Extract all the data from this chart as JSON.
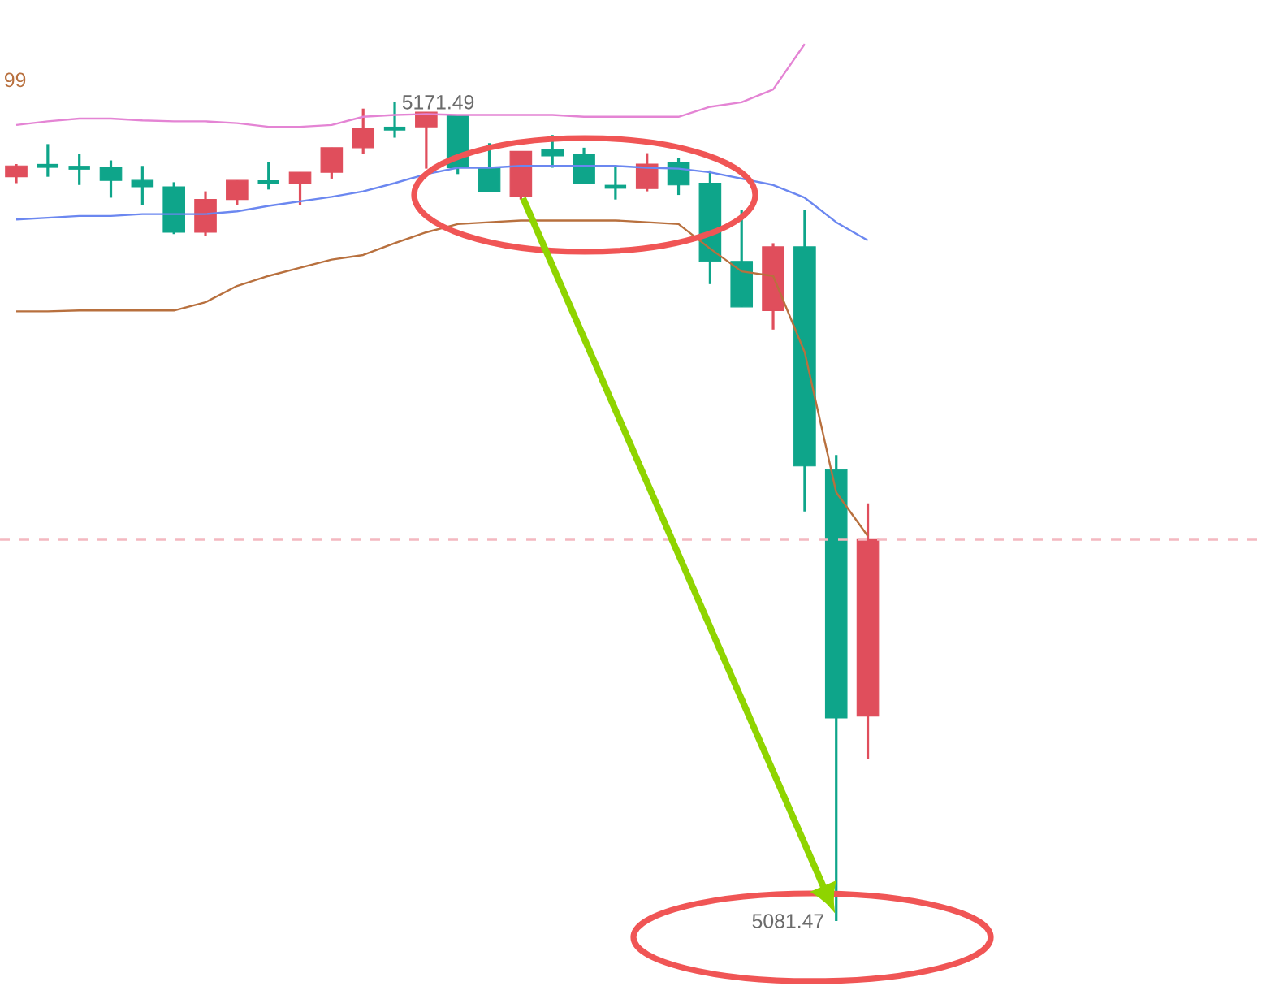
{
  "chart_data": {
    "type": "candlestick",
    "categories": [
      null,
      null,
      null,
      null,
      null,
      null,
      null,
      null,
      null,
      null,
      null,
      null,
      null,
      null,
      null,
      null,
      null,
      null,
      null,
      null,
      null,
      null,
      null,
      null,
      null,
      null,
      null,
      null
    ],
    "ohlc": [
      [
        5163.3,
        5164.7,
        5162.6,
        5164.5
      ],
      [
        5164.5,
        5166.9,
        5163.3,
        5164.5
      ],
      [
        5164.3,
        5165.8,
        5162.4,
        5164.3
      ],
      [
        5164.3,
        5165.1,
        5161.0,
        5162.9
      ],
      [
        5162.9,
        5164.5,
        5160.2,
        5162.2
      ],
      [
        5162.2,
        5162.7,
        5157.0,
        5157.2
      ],
      [
        5157.2,
        5161.7,
        5156.8,
        5160.8
      ],
      [
        5160.8,
        5162.9,
        5160.2,
        5162.9
      ],
      [
        5162.7,
        5164.9,
        5161.9,
        5162.7
      ],
      [
        5162.6,
        5163.8,
        5160.2,
        5163.8
      ],
      [
        5163.8,
        5166.5,
        5163.1,
        5166.5
      ],
      [
        5166.5,
        5170.8,
        5165.8,
        5168.6
      ],
      [
        5168.6,
        5171.49,
        5167.6,
        5168.6
      ],
      [
        5168.8,
        5170.4,
        5164.2,
        5170.4
      ],
      [
        5170.1,
        5170.1,
        5163.6,
        5164.3
      ],
      [
        5164.3,
        5167.0,
        5161.7,
        5161.7
      ],
      [
        5161.1,
        5166.1,
        5160.8,
        5166.1
      ],
      [
        5166.3,
        5167.9,
        5164.3,
        5165.6
      ],
      [
        5165.8,
        5166.5,
        5162.6,
        5162.6
      ],
      [
        5162.2,
        5164.5,
        5160.8,
        5162.2
      ],
      [
        5162.0,
        5165.9,
        5161.7,
        5164.7
      ],
      [
        5164.9,
        5165.4,
        5161.3,
        5162.4
      ],
      [
        5162.6,
        5164.0,
        5151.5,
        5154.0
      ],
      [
        5154.0,
        5159.7,
        5149.0,
        5149.0
      ],
      [
        5148.6,
        5156.0,
        5146.5,
        5155.6
      ],
      [
        5155.6,
        5159.7,
        5126.5,
        5131.5
      ],
      [
        5131.1,
        5132.7,
        5081.47,
        5103.8
      ],
      [
        5104.0,
        5127.4,
        5099.3,
        5123.4
      ]
    ],
    "colors": [
      "#e04e5c",
      "#0ea58a",
      "#0ea58a",
      "#0ea58a",
      "#0ea58a",
      "#0ea58a",
      "#e04e5c",
      "#e04e5c",
      "#0ea58a",
      "#e04e5c",
      "#e04e5c",
      "#e04e5c",
      "#0ea58a",
      "#e04e5c",
      "#0ea58a",
      "#0ea58a",
      "#e04e5c",
      "#0ea58a",
      "#0ea58a",
      "#0ea58a",
      "#e04e5c",
      "#0ea58a",
      "#0ea58a",
      "#0ea58a",
      "#e04e5c",
      "#0ea58a",
      "#0ea58a",
      "#e04e5c"
    ],
    "series": [
      {
        "type": "line",
        "color": "#e484d4",
        "values": [
          5169.0,
          5169.4,
          5169.7,
          5169.7,
          5169.5,
          5169.4,
          5169.4,
          5169.2,
          5168.8,
          5168.8,
          5169.0,
          5169.9,
          5170.1,
          5170.2,
          5170.1,
          5170.1,
          5170.1,
          5170.1,
          5169.9,
          5169.9,
          5169.9,
          5169.9,
          5171.0,
          5171.5,
          5172.9,
          5177.9,
          null,
          null
        ]
      },
      {
        "type": "line",
        "color": "#6b87f0",
        "values": [
          5158.6,
          5158.8,
          5159.0,
          5159.0,
          5159.2,
          5159.2,
          5159.2,
          5159.5,
          5160.1,
          5160.6,
          5161.1,
          5161.7,
          5162.6,
          5163.6,
          5164.3,
          5164.3,
          5164.5,
          5164.5,
          5164.5,
          5164.5,
          5164.3,
          5164.2,
          5163.8,
          5163.1,
          5162.4,
          5161.0,
          5158.3,
          5156.3
        ]
      },
      {
        "type": "line",
        "color": "#b8703e",
        "values": [
          5148.5,
          5148.5,
          5148.6,
          5148.6,
          5148.6,
          5148.6,
          5149.5,
          5151.3,
          5152.4,
          5153.3,
          5154.2,
          5154.7,
          5156.0,
          5157.2,
          5158.1,
          5158.3,
          5158.5,
          5158.5,
          5158.5,
          5158.5,
          5158.3,
          5158.1,
          5155.4,
          5152.9,
          5152.4,
          5144.0,
          5128.6,
          5123.8
        ]
      }
    ],
    "ref_lines": [
      {
        "axis": "y",
        "value": 5123.4,
        "color": "#f4b8c0",
        "line_style": "dashed"
      }
    ],
    "annotations": [
      "99",
      "5171.49",
      "5081.47"
    ]
  }
}
